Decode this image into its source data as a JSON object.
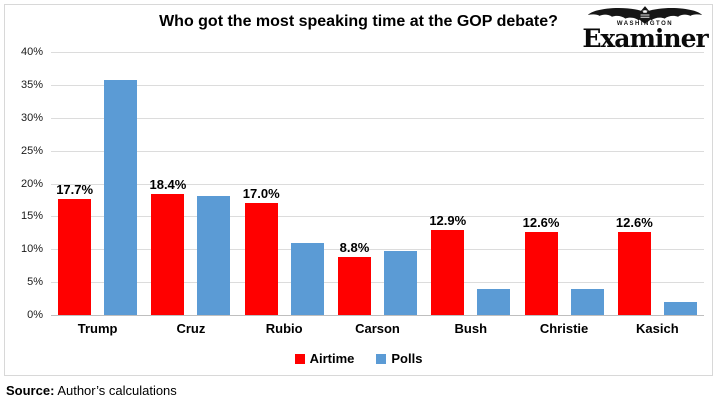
{
  "header": {
    "title": "Who got the most speaking time at the GOP debate?",
    "logo": {
      "top_text": "WASHINGTON",
      "main_text": "Examiner"
    }
  },
  "chart_data": {
    "type": "bar",
    "title": "Who got the most speaking time at the GOP debate?",
    "categories": [
      "Trump",
      "Cruz",
      "Rubio",
      "Carson",
      "Bush",
      "Christie",
      "Kasich"
    ],
    "series": [
      {
        "name": "Airtime",
        "color": "#ff0000",
        "values": [
          17.7,
          18.4,
          17.0,
          8.8,
          12.9,
          12.6,
          12.6
        ],
        "labels": [
          "17.7%",
          "18.4%",
          "17.0%",
          "8.8%",
          "12.9%",
          "12.6%",
          "12.6%"
        ]
      },
      {
        "name": "Polls",
        "color": "#5b9bd5",
        "values": [
          35.8,
          18.1,
          11.0,
          9.8,
          3.9,
          3.9,
          2.0
        ],
        "labels": null
      }
    ],
    "xlabel": "",
    "ylabel": "",
    "ylim": [
      0,
      40
    ],
    "ytick_step": 5,
    "yticks": [
      "0%",
      "5%",
      "10%",
      "15%",
      "20%",
      "25%",
      "30%",
      "35%",
      "40%"
    ],
    "grid": true,
    "legend_position": "bottom"
  },
  "footer": {
    "source_label": "Source:",
    "source_text": "Author’s calculations"
  },
  "colors": {
    "airtime": "#ff0000",
    "polls": "#5b9bd5",
    "gridline": "#dcdcdc",
    "axis_line": "#bfbfbf",
    "frame_border": "#d8d8d8"
  }
}
